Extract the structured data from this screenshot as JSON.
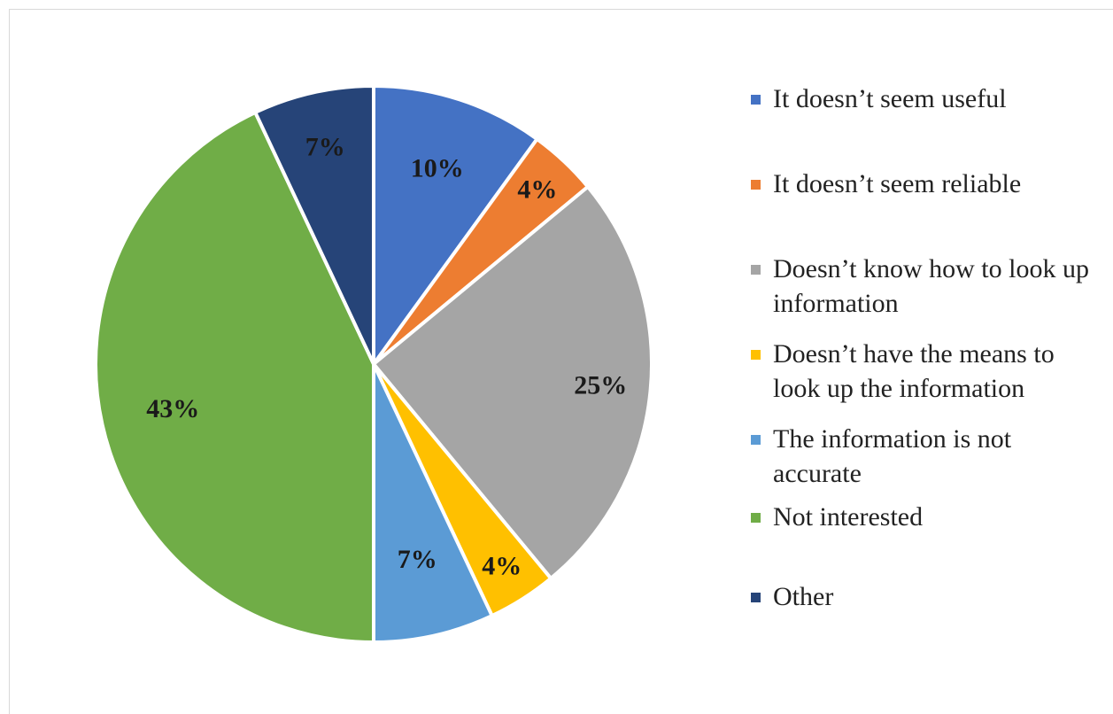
{
  "chart_data": {
    "type": "pie",
    "title": "",
    "legend_position": "right",
    "start_angle_deg": 0,
    "direction": "clockwise",
    "slices": [
      {
        "label": "It doesn’t seem useful",
        "value": 10,
        "display": "10%",
        "color": "#4472C4"
      },
      {
        "label": "It doesn’t seem reliable",
        "value": 4,
        "display": "4%",
        "color": "#ED7D31"
      },
      {
        "label": "Doesn’t know how to look up information",
        "value": 25,
        "display": "25%",
        "color": "#A5A5A5"
      },
      {
        "label": "Doesn’t have the means to look up the information",
        "value": 4,
        "display": "4%",
        "color": "#FFC000"
      },
      {
        "label": "The information is not accurate",
        "value": 7,
        "display": "7%",
        "color": "#5B9BD5"
      },
      {
        "label": "Not interested",
        "value": 43,
        "display": "43%",
        "color": "#70AD47"
      },
      {
        "label": "Other",
        "value": 7,
        "display": "7%",
        "color": "#264478"
      }
    ]
  }
}
